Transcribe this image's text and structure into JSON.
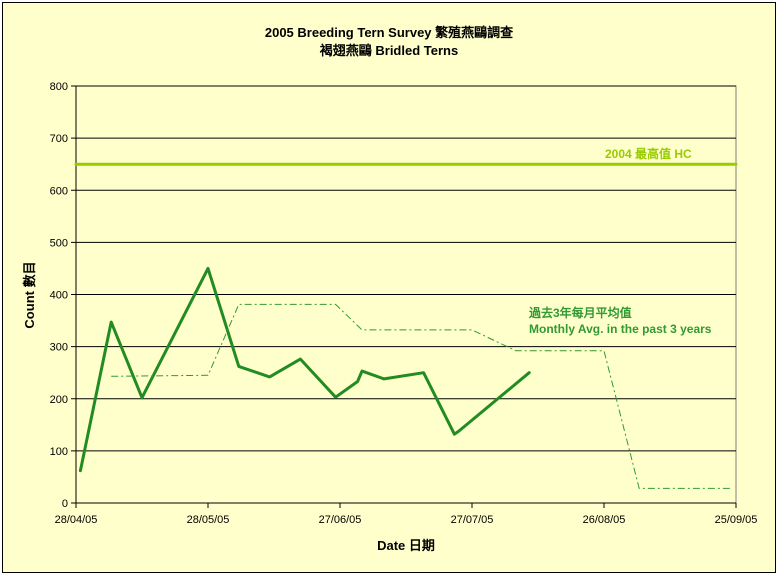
{
  "chart_data": {
    "type": "line",
    "title_line1": "2005 Breeding Tern Survey 繁殖燕鷗調查",
    "title_line2": "褐翅燕鷗 Bridled Terns",
    "xlabel": "Date 日期",
    "ylabel": "Count 數目",
    "ylim": [
      0,
      800
    ],
    "y_ticks": [
      0,
      100,
      200,
      300,
      400,
      500,
      600,
      700,
      800
    ],
    "x_range": [
      "2005-04-28",
      "2005-09-25"
    ],
    "x_ticks": [
      {
        "date": "2005-04-28",
        "label": "28/04/05"
      },
      {
        "date": "2005-05-28",
        "label": "28/05/05"
      },
      {
        "date": "2005-06-27",
        "label": "27/06/05"
      },
      {
        "date": "2005-07-27",
        "label": "27/07/05"
      },
      {
        "date": "2005-08-26",
        "label": "26/08/05"
      },
      {
        "date": "2005-09-25",
        "label": "25/09/05"
      }
    ],
    "grid": "horizontal",
    "series": [
      {
        "key": "counts",
        "color": "#228b22",
        "style": "solid-thick",
        "points": [
          {
            "x": "2005-04-29",
            "y": 62
          },
          {
            "x": "2005-05-06",
            "y": 347
          },
          {
            "x": "2005-05-13",
            "y": 202
          },
          {
            "x": "2005-05-28",
            "y": 450
          },
          {
            "x": "2005-06-04",
            "y": 262
          },
          {
            "x": "2005-06-11",
            "y": 242
          },
          {
            "x": "2005-06-18",
            "y": 276
          },
          {
            "x": "2005-06-26",
            "y": 203
          },
          {
            "x": "2005-07-01",
            "y": 233
          },
          {
            "x": "2005-07-02",
            "y": 253
          },
          {
            "x": "2005-07-07",
            "y": 238
          },
          {
            "x": "2005-07-16",
            "y": 250
          },
          {
            "x": "2005-07-23",
            "y": 132
          },
          {
            "x": "2005-07-24",
            "y": 138
          },
          {
            "x": "2005-08-09",
            "y": 250
          }
        ]
      },
      {
        "key": "monthly_avg",
        "color": "#339933",
        "style": "dash-dot",
        "points": [
          {
            "x": "2005-05-06",
            "y": 243
          },
          {
            "x": "2005-05-28",
            "y": 245
          },
          {
            "x": "2005-06-04",
            "y": 381
          },
          {
            "x": "2005-06-26",
            "y": 381
          },
          {
            "x": "2005-07-02",
            "y": 332
          },
          {
            "x": "2005-07-27",
            "y": 332
          },
          {
            "x": "2005-08-06",
            "y": 292
          },
          {
            "x": "2005-08-26",
            "y": 292
          },
          {
            "x": "2005-09-03",
            "y": 28
          },
          {
            "x": "2005-09-24",
            "y": 28
          }
        ]
      },
      {
        "key": "high_2004",
        "color": "#99cc00",
        "style": "solid-thick",
        "points": [
          {
            "x": "2005-04-28",
            "y": 650
          },
          {
            "x": "2005-09-25",
            "y": 650
          }
        ]
      }
    ],
    "annotations": {
      "high_label": "2004  最高值  HC",
      "avg_label_line1": "過去3年每月平均值",
      "avg_label_line2": "Monthly Avg. in the past 3 years"
    }
  }
}
